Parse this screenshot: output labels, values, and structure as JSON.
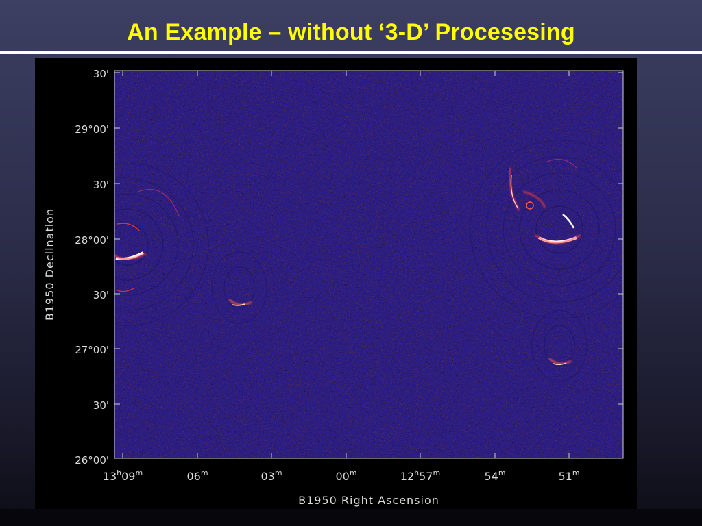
{
  "slide": {
    "title": "An Example – without ‘3-D’ Procesesing"
  },
  "figure": {
    "y_axis": {
      "label": "B1950 Declination",
      "ticks": [
        "30'",
        "29°00'",
        "30'",
        "28°00'",
        "30'",
        "27°00'",
        "30'",
        "26°00'"
      ]
    },
    "x_axis": {
      "label": "B1950 Right Ascension",
      "ticks": [
        {
          "main": "13",
          "sup1": "h",
          "mid": "09",
          "sup2": "m"
        },
        {
          "main": "06",
          "sup1": "m",
          "mid": "",
          "sup2": ""
        },
        {
          "main": "03",
          "sup1": "m",
          "mid": "",
          "sup2": ""
        },
        {
          "main": "00",
          "sup1": "m",
          "mid": "",
          "sup2": ""
        },
        {
          "main": "12",
          "sup1": "h",
          "mid": "57",
          "sup2": "m"
        },
        {
          "main": "54",
          "sup1": "m",
          "mid": "",
          "sup2": ""
        },
        {
          "main": "51",
          "sup1": "m",
          "mid": "",
          "sup2": ""
        }
      ]
    },
    "colors": {
      "sky_background": "#2a1f8c",
      "hot_pixel": "#ffffff",
      "warm_pixel": "#ff3a3a",
      "axis_text": "#dcdcdc"
    }
  }
}
